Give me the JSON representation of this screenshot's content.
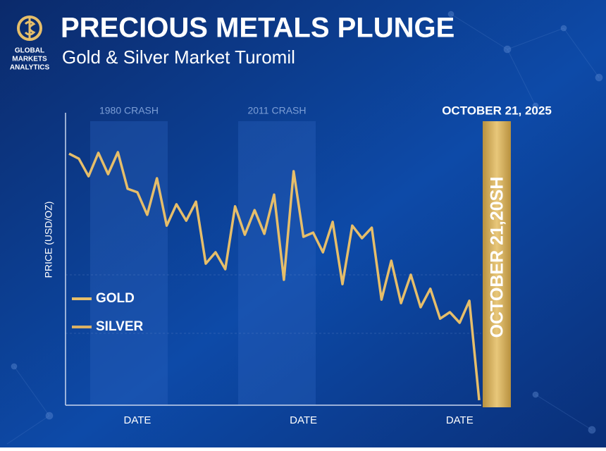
{
  "chart_data": {
    "type": "line",
    "logo_text": [
      "GLOBAL",
      "MARKETS",
      "ANALYTICS"
    ],
    "title": "PRECIOUS METALS PLUNGE",
    "subtitle": "Gold & Silver Market Turomil",
    "y_label": "PRICE (USD/OZ)",
    "categories": [
      null,
      null,
      null,
      null,
      null,
      null,
      null,
      "DATE",
      null,
      null,
      null,
      null,
      null,
      null,
      null,
      null,
      null,
      null,
      null,
      null,
      null,
      null,
      null,
      null,
      "DATE",
      null,
      null,
      null,
      null,
      null,
      null,
      null,
      null,
      null,
      null,
      null,
      null,
      null,
      null,
      null,
      "DATE",
      null,
      null
    ],
    "values": [
      86.0,
      84.3,
      78.3,
      86.3,
      79.0,
      86.5,
      74.0,
      72.8,
      65.1,
      77.6,
      61.4,
      68.7,
      63.1,
      69.6,
      48.4,
      52.3,
      46.5,
      68.0,
      58.3,
      66.7,
      58.6,
      72.0,
      42.9,
      80.0,
      57.6,
      59.0,
      52.3,
      62.7,
      41.4,
      61.4,
      57.1,
      60.7,
      36.1,
      49.4,
      34.9,
      44.6,
      33.5,
      39.8,
      29.6,
      31.8,
      28.2,
      35.7,
      1.7
    ],
    "color": "#e6be6a",
    "ylim": [
      0,
      100
    ],
    "legend": [
      {
        "label": "GOLD",
        "color": "#e6be6a"
      },
      {
        "label": "SILVER",
        "color": "#d9b064"
      }
    ],
    "bands": [
      "1980 CRASH",
      "2011 CRASH"
    ],
    "annotation": "OCTOBER 21, 2025",
    "marker_label": "OCTOBER 21,20SH"
  }
}
